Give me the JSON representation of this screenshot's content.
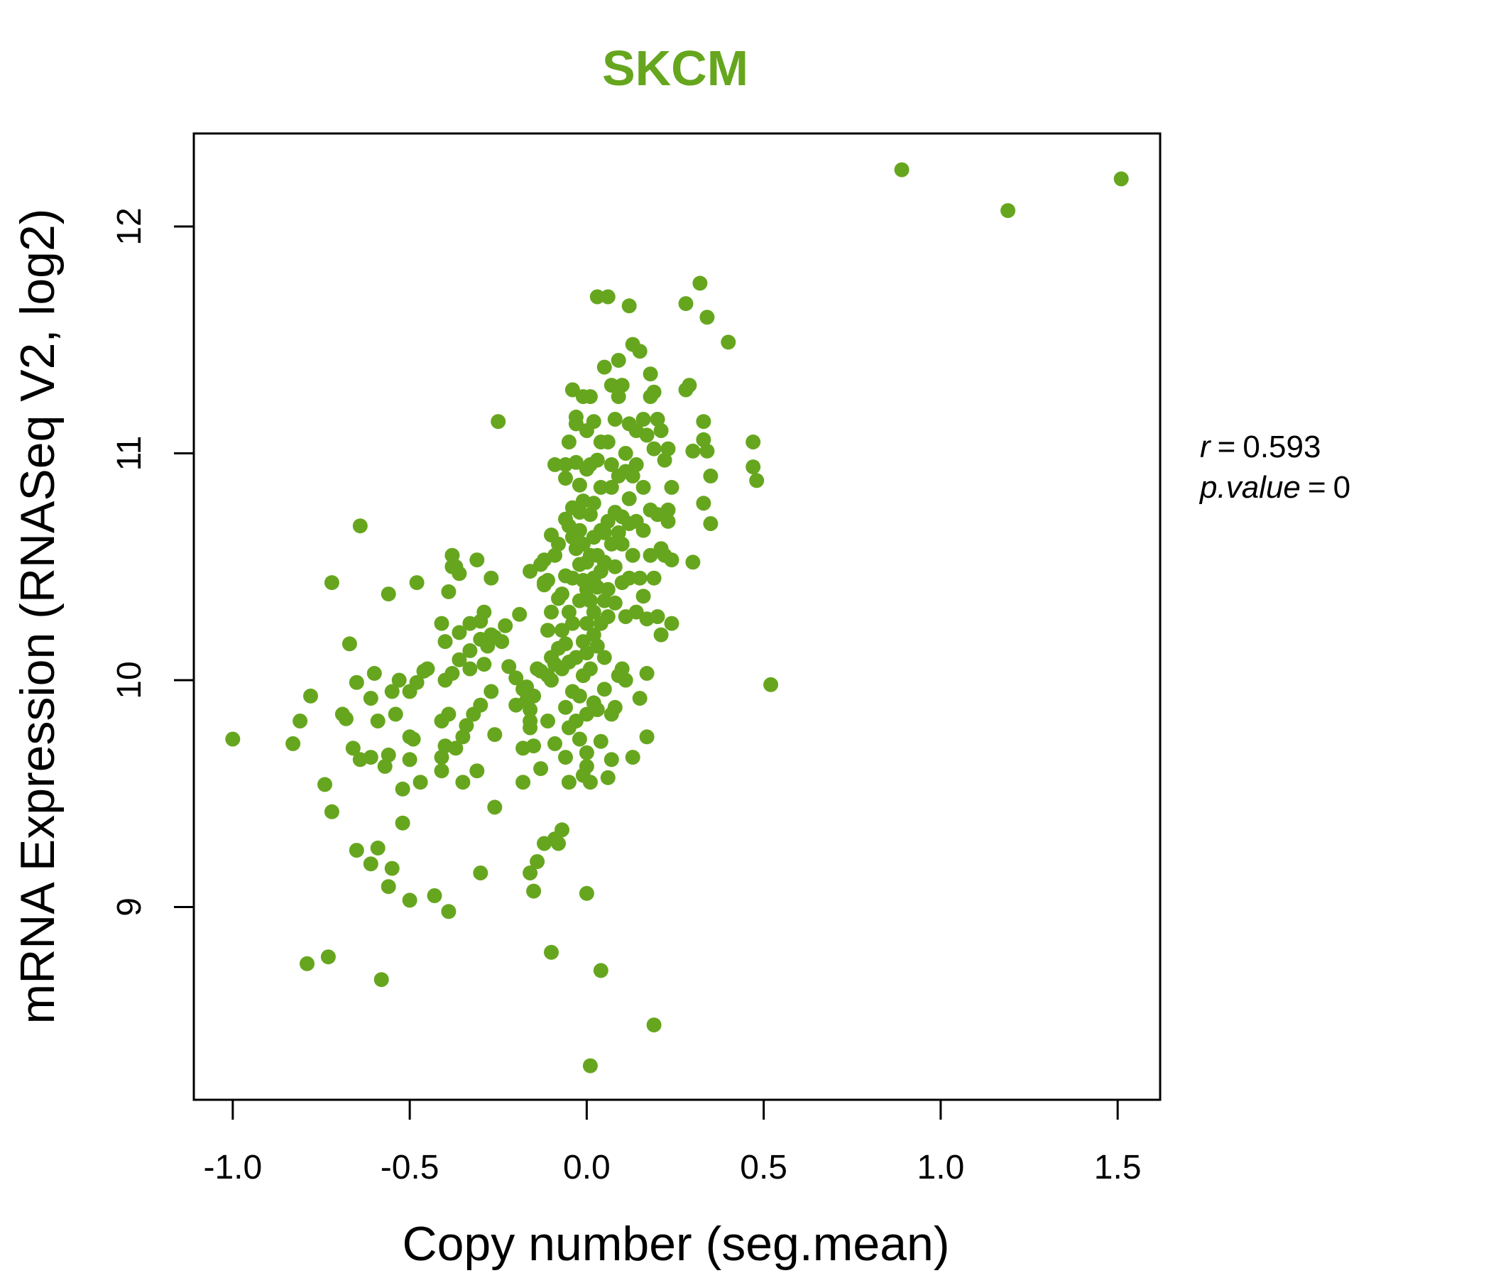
{
  "accent_color": "#66a61e",
  "chart_data": {
    "type": "scatter",
    "title": "SKCM",
    "xlabel": "Copy number (seg.mean)",
    "ylabel": "mRNA Expression (RNASeq V2, log2)",
    "xlim": [
      -1.11,
      1.62
    ],
    "ylim": [
      8.15,
      12.41
    ],
    "xticks": [
      -1.0,
      -0.5,
      0.0,
      0.5,
      1.0,
      1.5
    ],
    "xtick_labels": [
      "-1.0",
      "-0.5",
      "0.0",
      "0.5",
      "1.0",
      "1.5"
    ],
    "yticks": [
      9,
      10,
      11,
      12
    ],
    "ytick_labels": [
      "9",
      "10",
      "11",
      "12"
    ],
    "grid": false,
    "point_color": "#66a61e",
    "stats": {
      "r_label": "r",
      "r_value": "0.593",
      "p_label": "p.value",
      "p_value": "0"
    },
    "points": [
      [
        -1.0,
        9.74
      ],
      [
        -0.83,
        9.72
      ],
      [
        -0.81,
        9.82
      ],
      [
        -0.79,
        8.75
      ],
      [
        -0.78,
        9.93
      ],
      [
        -0.74,
        9.54
      ],
      [
        -0.73,
        8.78
      ],
      [
        -0.72,
        9.42
      ],
      [
        -0.72,
        10.43
      ],
      [
        -0.69,
        9.85
      ],
      [
        -0.68,
        9.83
      ],
      [
        -0.67,
        10.16
      ],
      [
        -0.66,
        9.7
      ],
      [
        -0.65,
        9.99
      ],
      [
        -0.65,
        9.25
      ],
      [
        -0.64,
        9.65
      ],
      [
        -0.64,
        10.68
      ],
      [
        -0.61,
        9.66
      ],
      [
        -0.61,
        9.92
      ],
      [
        -0.61,
        9.19
      ],
      [
        -0.6,
        10.03
      ],
      [
        -0.59,
        9.82
      ],
      [
        -0.59,
        9.26
      ],
      [
        -0.58,
        8.68
      ],
      [
        -0.57,
        9.62
      ],
      [
        -0.56,
        9.09
      ],
      [
        -0.56,
        9.67
      ],
      [
        -0.56,
        10.38
      ],
      [
        -0.55,
        9.95
      ],
      [
        -0.55,
        9.17
      ],
      [
        -0.54,
        9.85
      ],
      [
        -0.53,
        10.0
      ],
      [
        -0.52,
        9.52
      ],
      [
        -0.52,
        9.37
      ],
      [
        -0.5,
        9.95
      ],
      [
        -0.5,
        9.75
      ],
      [
        -0.5,
        9.03
      ],
      [
        -0.5,
        9.65
      ],
      [
        -0.49,
        9.74
      ],
      [
        -0.48,
        10.43
      ],
      [
        -0.48,
        9.99
      ],
      [
        -0.47,
        9.55
      ],
      [
        -0.46,
        10.04
      ],
      [
        -0.45,
        10.05
      ],
      [
        -0.43,
        9.05
      ],
      [
        -0.41,
        9.82
      ],
      [
        -0.41,
        9.6
      ],
      [
        -0.41,
        10.25
      ],
      [
        -0.41,
        9.66
      ],
      [
        -0.4,
        10.17
      ],
      [
        -0.4,
        9.71
      ],
      [
        -0.4,
        10.0
      ],
      [
        -0.39,
        10.39
      ],
      [
        -0.39,
        9.85
      ],
      [
        -0.39,
        8.98
      ],
      [
        -0.38,
        10.55
      ],
      [
        -0.38,
        10.03
      ],
      [
        -0.38,
        10.5
      ],
      [
        -0.37,
        10.5
      ],
      [
        -0.37,
        9.7
      ],
      [
        -0.36,
        10.21
      ],
      [
        -0.36,
        10.09
      ],
      [
        -0.36,
        10.47
      ],
      [
        -0.35,
        9.55
      ],
      [
        -0.35,
        9.75
      ],
      [
        -0.34,
        9.8
      ],
      [
        -0.33,
        10.25
      ],
      [
        -0.33,
        10.05
      ],
      [
        -0.33,
        10.13
      ],
      [
        -0.32,
        9.85
      ],
      [
        -0.31,
        9.6
      ],
      [
        -0.31,
        10.53
      ],
      [
        -0.3,
        10.18
      ],
      [
        -0.3,
        10.26
      ],
      [
        -0.3,
        9.15
      ],
      [
        -0.3,
        9.89
      ],
      [
        -0.29,
        10.07
      ],
      [
        -0.29,
        10.3
      ],
      [
        -0.28,
        10.15
      ],
      [
        -0.27,
        10.2
      ],
      [
        -0.27,
        10.45
      ],
      [
        -0.27,
        9.95
      ],
      [
        -0.26,
        10.19
      ],
      [
        -0.26,
        9.44
      ],
      [
        -0.26,
        9.76
      ],
      [
        -0.25,
        11.14
      ],
      [
        -0.24,
        10.17
      ],
      [
        -0.23,
        10.24
      ],
      [
        -0.22,
        10.06
      ],
      [
        -0.2,
        10.01
      ],
      [
        -0.2,
        9.89
      ],
      [
        -0.19,
        10.29
      ],
      [
        -0.18,
        9.7
      ],
      [
        -0.18,
        9.96
      ],
      [
        -0.18,
        9.55
      ],
      [
        -0.17,
        9.97
      ],
      [
        -0.17,
        9.91
      ],
      [
        -0.16,
        10.48
      ],
      [
        -0.16,
        9.87
      ],
      [
        -0.16,
        9.82
      ],
      [
        -0.16,
        9.15
      ],
      [
        -0.16,
        9.79
      ],
      [
        -0.15,
        9.93
      ],
      [
        -0.15,
        9.71
      ],
      [
        -0.15,
        9.07
      ],
      [
        -0.14,
        10.05
      ],
      [
        -0.14,
        9.2
      ],
      [
        -0.13,
        10.51
      ],
      [
        -0.13,
        10.04
      ],
      [
        -0.13,
        9.61
      ],
      [
        -0.12,
        10.43
      ],
      [
        -0.12,
        10.53
      ],
      [
        -0.12,
        9.28
      ],
      [
        -0.12,
        10.42
      ],
      [
        -0.11,
        10.22
      ],
      [
        -0.11,
        10.02
      ],
      [
        -0.11,
        9.82
      ],
      [
        -0.11,
        10.44
      ],
      [
        -0.1,
        8.8
      ],
      [
        -0.1,
        10.0
      ],
      [
        -0.1,
        10.1
      ],
      [
        -0.1,
        10.3
      ],
      [
        -0.1,
        10.64
      ],
      [
        -0.09,
        9.3
      ],
      [
        -0.09,
        10.55
      ],
      [
        -0.09,
        10.07
      ],
      [
        -0.09,
        9.72
      ],
      [
        -0.09,
        10.95
      ],
      [
        -0.08,
        10.36
      ],
      [
        -0.08,
        10.6
      ],
      [
        -0.08,
        9.28
      ],
      [
        -0.08,
        10.14
      ],
      [
        -0.07,
        9.34
      ],
      [
        -0.07,
        10.22
      ],
      [
        -0.07,
        10.38
      ],
      [
        -0.07,
        10.05
      ],
      [
        -0.06,
        9.66
      ],
      [
        -0.06,
        10.71
      ],
      [
        -0.06,
        10.46
      ],
      [
        -0.06,
        9.88
      ],
      [
        -0.06,
        10.95
      ],
      [
        -0.06,
        10.16
      ],
      [
        -0.06,
        10.89
      ],
      [
        -0.05,
        9.79
      ],
      [
        -0.05,
        10.68
      ],
      [
        -0.05,
        10.3
      ],
      [
        -0.05,
        11.05
      ],
      [
        -0.05,
        10.08
      ],
      [
        -0.05,
        9.55
      ],
      [
        -0.04,
        10.76
      ],
      [
        -0.04,
        10.63
      ],
      [
        -0.04,
        10.45
      ],
      [
        -0.04,
        11.28
      ],
      [
        -0.04,
        10.25
      ],
      [
        -0.04,
        9.95
      ],
      [
        -0.03,
        11.16
      ],
      [
        -0.03,
        10.1
      ],
      [
        -0.03,
        9.82
      ],
      [
        -0.03,
        10.58
      ],
      [
        -0.03,
        10.96
      ],
      [
        -0.03,
        11.13
      ],
      [
        -0.02,
        10.51
      ],
      [
        -0.02,
        10.74
      ],
      [
        -0.02,
        9.93
      ],
      [
        -0.02,
        10.35
      ],
      [
        -0.02,
        9.74
      ],
      [
        -0.02,
        10.86
      ],
      [
        -0.02,
        10.66
      ],
      [
        -0.01,
        10.17
      ],
      [
        -0.01,
        10.44
      ],
      [
        -0.01,
        11.25
      ],
      [
        -0.01,
        10.6
      ],
      [
        -0.01,
        10.02
      ],
      [
        -0.01,
        9.58
      ],
      [
        -0.01,
        10.79
      ],
      [
        0.0,
        10.93
      ],
      [
        0.0,
        10.25
      ],
      [
        0.0,
        9.85
      ],
      [
        0.0,
        10.4
      ],
      [
        0.0,
        9.06
      ],
      [
        0.0,
        9.68
      ],
      [
        0.0,
        10.52
      ],
      [
        0.0,
        11.1
      ],
      [
        0.0,
        9.62
      ],
      [
        0.0,
        10.12
      ],
      [
        0.01,
        10.73
      ],
      [
        0.01,
        10.35
      ],
      [
        0.01,
        11.25
      ],
      [
        0.01,
        10.05
      ],
      [
        0.01,
        10.55
      ],
      [
        0.01,
        9.55
      ],
      [
        0.01,
        8.3
      ],
      [
        0.01,
        10.95
      ],
      [
        0.02,
        10.45
      ],
      [
        0.02,
        10.63
      ],
      [
        0.02,
        11.14
      ],
      [
        0.02,
        9.9
      ],
      [
        0.02,
        10.2
      ],
      [
        0.02,
        10.78
      ],
      [
        0.02,
        10.3
      ],
      [
        0.03,
        10.97
      ],
      [
        0.03,
        11.69
      ],
      [
        0.03,
        10.41
      ],
      [
        0.03,
        9.87
      ],
      [
        0.03,
        10.55
      ],
      [
        0.03,
        10.15
      ],
      [
        0.04,
        10.66
      ],
      [
        0.04,
        10.25
      ],
      [
        0.04,
        8.72
      ],
      [
        0.04,
        11.05
      ],
      [
        0.04,
        10.48
      ],
      [
        0.04,
        9.73
      ],
      [
        0.04,
        10.85
      ],
      [
        0.05,
        11.38
      ],
      [
        0.05,
        10.35
      ],
      [
        0.05,
        10.65
      ],
      [
        0.05,
        9.96
      ],
      [
        0.05,
        10.1
      ],
      [
        0.05,
        10.52
      ],
      [
        0.06,
        11.69
      ],
      [
        0.06,
        10.7
      ],
      [
        0.06,
        9.57
      ],
      [
        0.06,
        11.05
      ],
      [
        0.06,
        10.28
      ],
      [
        0.06,
        10.4
      ],
      [
        0.07,
        11.3
      ],
      [
        0.07,
        10.85
      ],
      [
        0.07,
        9.85
      ],
      [
        0.07,
        10.6
      ],
      [
        0.07,
        10.95
      ],
      [
        0.07,
        9.65
      ],
      [
        0.08,
        10.34
      ],
      [
        0.08,
        10.74
      ],
      [
        0.08,
        11.15
      ],
      [
        0.08,
        9.88
      ],
      [
        0.08,
        10.5
      ],
      [
        0.09,
        11.25
      ],
      [
        0.09,
        10.65
      ],
      [
        0.09,
        10.02
      ],
      [
        0.09,
        11.41
      ],
      [
        0.09,
        10.9
      ],
      [
        0.1,
        10.43
      ],
      [
        0.1,
        10.72
      ],
      [
        0.1,
        11.3
      ],
      [
        0.1,
        10.05
      ],
      [
        0.1,
        10.6
      ],
      [
        0.11,
        10.92
      ],
      [
        0.11,
        10.28
      ],
      [
        0.11,
        11.0
      ],
      [
        0.11,
        10.0
      ],
      [
        0.12,
        10.45
      ],
      [
        0.12,
        11.65
      ],
      [
        0.12,
        10.8
      ],
      [
        0.12,
        11.13
      ],
      [
        0.12,
        10.69
      ],
      [
        0.13,
        9.66
      ],
      [
        0.13,
        10.55
      ],
      [
        0.13,
        10.9
      ],
      [
        0.13,
        11.48
      ],
      [
        0.14,
        10.3
      ],
      [
        0.14,
        11.1
      ],
      [
        0.14,
        10.7
      ],
      [
        0.14,
        10.95
      ],
      [
        0.15,
        11.45
      ],
      [
        0.15,
        9.92
      ],
      [
        0.15,
        10.45
      ],
      [
        0.16,
        10.85
      ],
      [
        0.16,
        11.15
      ],
      [
        0.16,
        10.37
      ],
      [
        0.16,
        10.66
      ],
      [
        0.17,
        10.03
      ],
      [
        0.17,
        9.75
      ],
      [
        0.17,
        11.08
      ],
      [
        0.17,
        10.27
      ],
      [
        0.18,
        10.55
      ],
      [
        0.18,
        11.35
      ],
      [
        0.18,
        10.75
      ],
      [
        0.18,
        11.25
      ],
      [
        0.19,
        10.45
      ],
      [
        0.19,
        11.02
      ],
      [
        0.19,
        8.48
      ],
      [
        0.19,
        11.27
      ],
      [
        0.2,
        10.28
      ],
      [
        0.2,
        10.73
      ],
      [
        0.2,
        11.15
      ],
      [
        0.21,
        10.2
      ],
      [
        0.21,
        11.1
      ],
      [
        0.21,
        10.58
      ],
      [
        0.22,
        10.97
      ],
      [
        0.22,
        10.55
      ],
      [
        0.23,
        11.02
      ],
      [
        0.23,
        10.7
      ],
      [
        0.23,
        10.75
      ],
      [
        0.24,
        10.53
      ],
      [
        0.24,
        10.85
      ],
      [
        0.24,
        10.25
      ],
      [
        0.28,
        11.66
      ],
      [
        0.28,
        11.28
      ],
      [
        0.29,
        11.3
      ],
      [
        0.3,
        10.52
      ],
      [
        0.3,
        11.01
      ],
      [
        0.32,
        11.75
      ],
      [
        0.33,
        11.14
      ],
      [
        0.33,
        11.06
      ],
      [
        0.33,
        10.78
      ],
      [
        0.34,
        11.01
      ],
      [
        0.34,
        11.6
      ],
      [
        0.35,
        10.69
      ],
      [
        0.35,
        10.9
      ],
      [
        0.4,
        11.49
      ],
      [
        0.47,
        11.05
      ],
      [
        0.47,
        10.94
      ],
      [
        0.48,
        10.88
      ],
      [
        0.52,
        9.98
      ],
      [
        0.89,
        12.25
      ],
      [
        1.19,
        12.07
      ],
      [
        1.51,
        12.21
      ]
    ]
  }
}
